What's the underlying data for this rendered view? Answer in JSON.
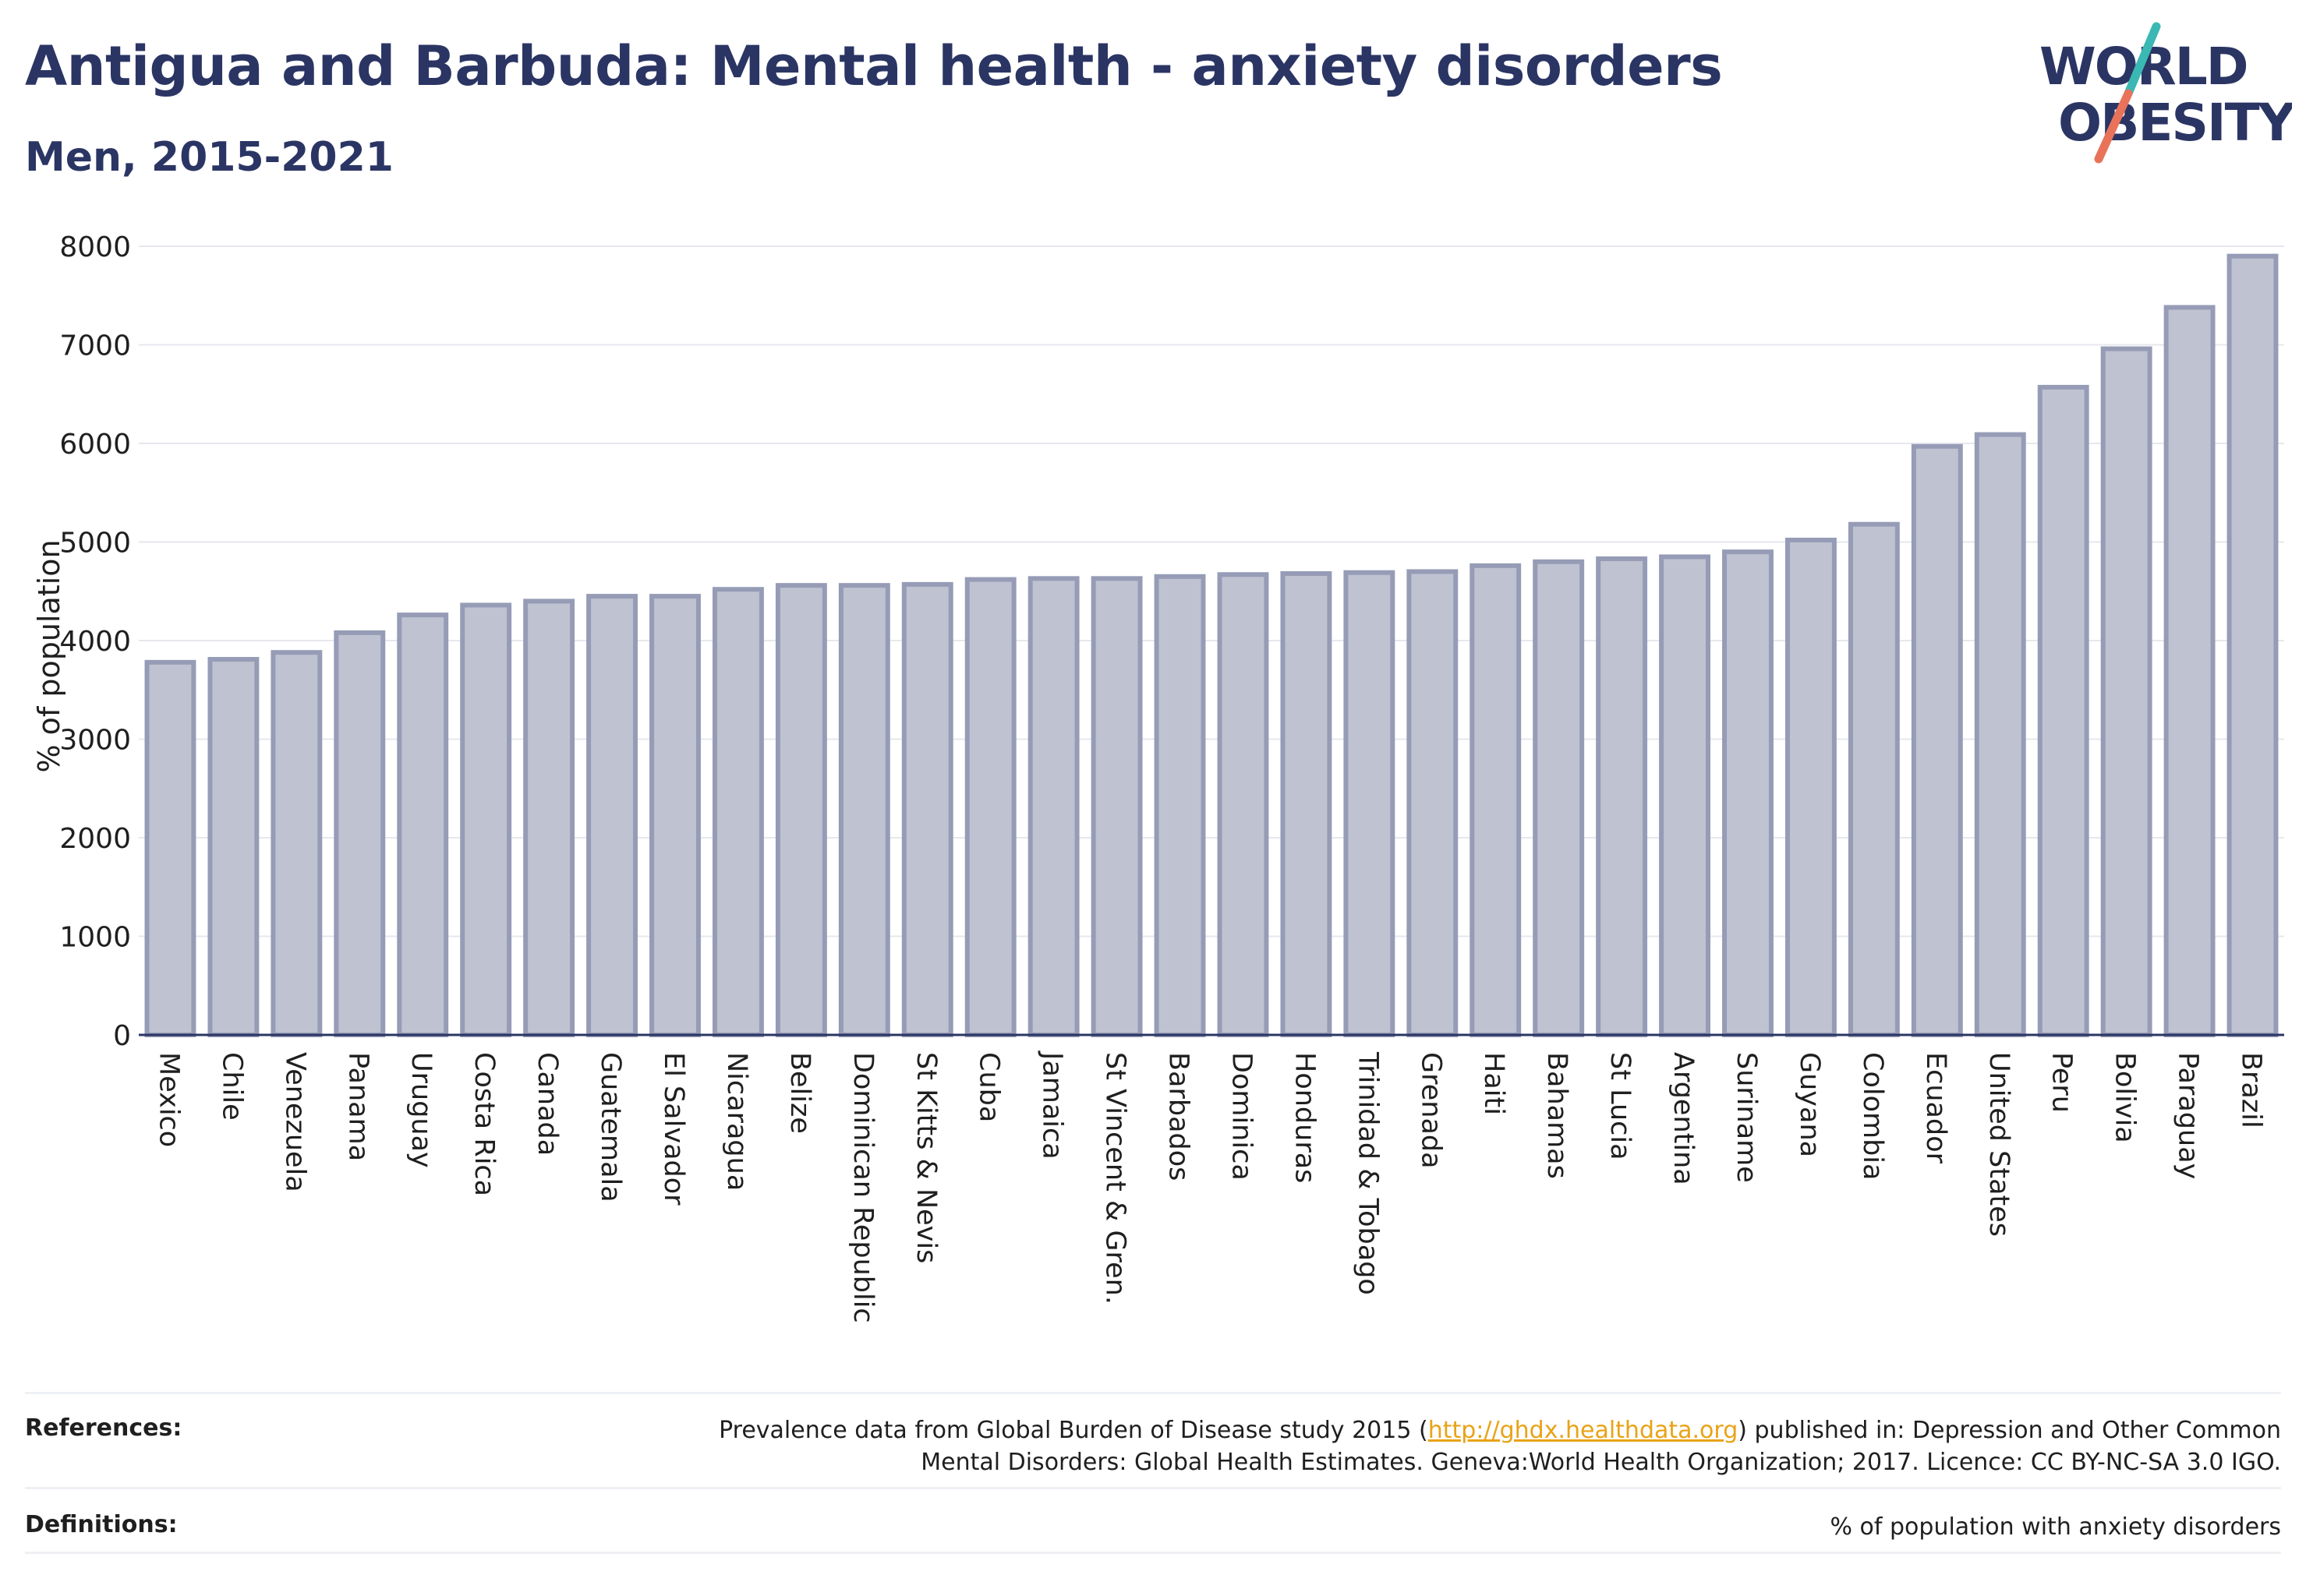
{
  "title": "Antigua and Barbuda: Mental health - anxiety disorders",
  "subtitle": "Men, 2015-2021",
  "logo": {
    "line1": "WORLD",
    "line2": "OBESITY",
    "accent_teal": "#3bb8b3",
    "accent_coral": "#e8735a"
  },
  "colors": {
    "bar_fill": "#bfc2d0",
    "bar_stroke": "#969cb6",
    "text": "#2b3564",
    "grid": "#e6e8ee",
    "link": "#e8a317"
  },
  "chart_data": {
    "type": "bar",
    "ylabel": "% of population",
    "xlabel": "",
    "ylim": [
      0,
      8000
    ],
    "yticks": [
      0,
      1000,
      2000,
      3000,
      4000,
      5000,
      6000,
      7000,
      8000
    ],
    "grid": true,
    "categories": [
      "Mexico",
      "Chile",
      "Venezuela",
      "Panama",
      "Uruguay",
      "Costa Rica",
      "Canada",
      "Guatemala",
      "El Salvador",
      "Nicaragua",
      "Belize",
      "Dominican Republic",
      "St Kitts & Nevis",
      "Cuba",
      "Jamaica",
      "St Vincent & Gren.",
      "Barbados",
      "Dominica",
      "Honduras",
      "Trinidad & Tobago",
      "Grenada",
      "Haiti",
      "Bahamas",
      "St Lucia",
      "Argentina",
      "Suriname",
      "Guyana",
      "Colombia",
      "Ecuador",
      "United States",
      "Peru",
      "Bolivia",
      "Paraguay",
      "Brazil"
    ],
    "values": [
      3780,
      3810,
      3880,
      4080,
      4260,
      4360,
      4400,
      4450,
      4450,
      4520,
      4560,
      4560,
      4570,
      4620,
      4630,
      4630,
      4650,
      4670,
      4680,
      4690,
      4700,
      4760,
      4800,
      4830,
      4850,
      4900,
      5020,
      5180,
      5970,
      6090,
      6570,
      6960,
      7380,
      7900
    ]
  },
  "footer": {
    "references_label": "References:",
    "references_pre": "Prevalence data from Global Burden of Disease study 2015 (",
    "references_link": "http://ghdx.healthdata.org",
    "references_post": ") published in: Depression and Other Common",
    "references_line2": "Mental Disorders: Global Health Estimates. Geneva:World Health Organization; 2017. Licence: CC BY-NC-SA 3.0 IGO.",
    "definitions_label": "Definitions:",
    "definitions_text": "% of population with anxiety disorders"
  }
}
